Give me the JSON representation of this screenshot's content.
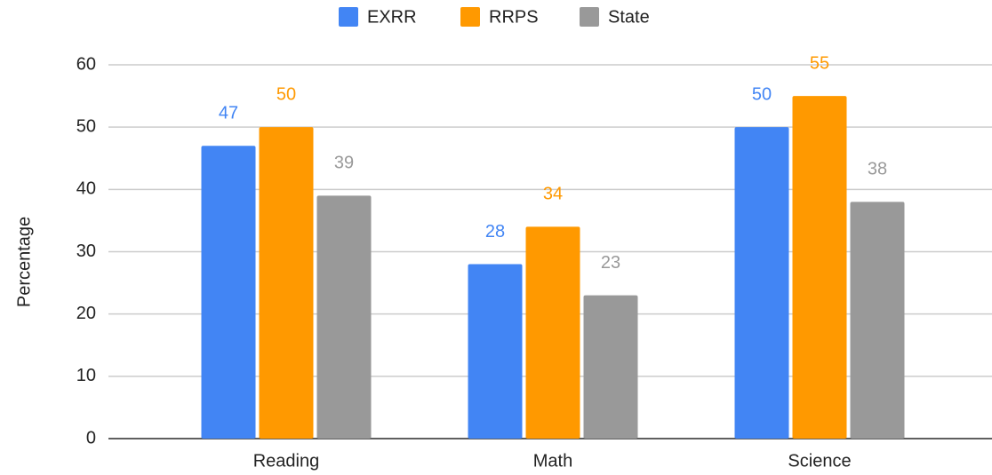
{
  "chart_data": {
    "type": "bar",
    "categories": [
      "Reading",
      "Math",
      "Science"
    ],
    "series": [
      {
        "name": "EXRR",
        "color": "#4285f4",
        "values": [
          47,
          28,
          50
        ]
      },
      {
        "name": "RRPS",
        "color": "#ff9900",
        "values": [
          50,
          34,
          55
        ]
      },
      {
        "name": "State",
        "color": "#999999",
        "values": [
          39,
          23,
          38
        ]
      }
    ],
    "ylabel": "Percentage",
    "ylim": [
      0,
      60
    ],
    "yticks": [
      0,
      10,
      20,
      30,
      40,
      50,
      60
    ],
    "grid": true,
    "legend": "top",
    "data_labels": true
  }
}
